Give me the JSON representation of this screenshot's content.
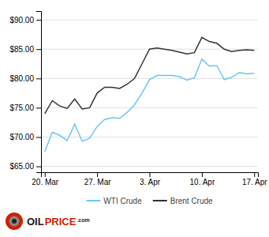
{
  "chart_data": {
    "type": "line",
    "x": [
      0,
      1,
      2,
      3,
      4,
      5,
      6,
      7,
      8,
      9,
      10,
      11,
      12,
      13,
      14,
      15,
      16,
      17,
      18,
      19,
      20,
      21,
      22,
      23,
      24,
      25,
      26,
      27,
      28
    ],
    "series": [
      {
        "name": "WTI Crude",
        "color": "#6ec6f5",
        "values": [
          67.5,
          70.8,
          70.3,
          69.4,
          72.2,
          69.3,
          69.8,
          71.8,
          73.0,
          73.3,
          73.2,
          74.2,
          75.5,
          77.5,
          79.8,
          80.5,
          80.5,
          80.5,
          80.3,
          79.7,
          80.1,
          83.3,
          82.1,
          82.2,
          79.8,
          80.2,
          81.0,
          80.8,
          80.9
        ]
      },
      {
        "name": "Brent Crude",
        "color": "#333333",
        "values": [
          74.0,
          76.2,
          75.3,
          74.9,
          76.5,
          74.8,
          75.0,
          77.5,
          78.5,
          78.5,
          78.3,
          79.0,
          80.0,
          82.5,
          85.0,
          85.2,
          85.0,
          84.8,
          84.5,
          84.2,
          84.4,
          87.0,
          86.3,
          86.0,
          85.0,
          84.6,
          84.8,
          84.9,
          84.8
        ]
      }
    ],
    "xlim": [
      -0.5,
      28.5
    ],
    "xticks": [
      {
        "value": 0,
        "label": "20. Mar"
      },
      {
        "value": 7,
        "label": "27. Mar"
      },
      {
        "value": 14,
        "label": "3. Apr"
      },
      {
        "value": 21,
        "label": "10. Apr"
      },
      {
        "value": 28,
        "label": "17. Apr"
      }
    ],
    "ylim": [
      64.0,
      91.5
    ],
    "yticks": [
      {
        "value": 65,
        "label": "$65.00"
      },
      {
        "value": 70,
        "label": "$70.00"
      },
      {
        "value": 75,
        "label": "$75.00"
      },
      {
        "value": 80,
        "label": "$80.00"
      },
      {
        "value": 85,
        "label": "$85.00"
      },
      {
        "value": 90,
        "label": "$90.00"
      }
    ],
    "grid": true,
    "legend": "bottom",
    "annotations": [
      "OIL",
      "PRICE",
      ".com"
    ]
  }
}
